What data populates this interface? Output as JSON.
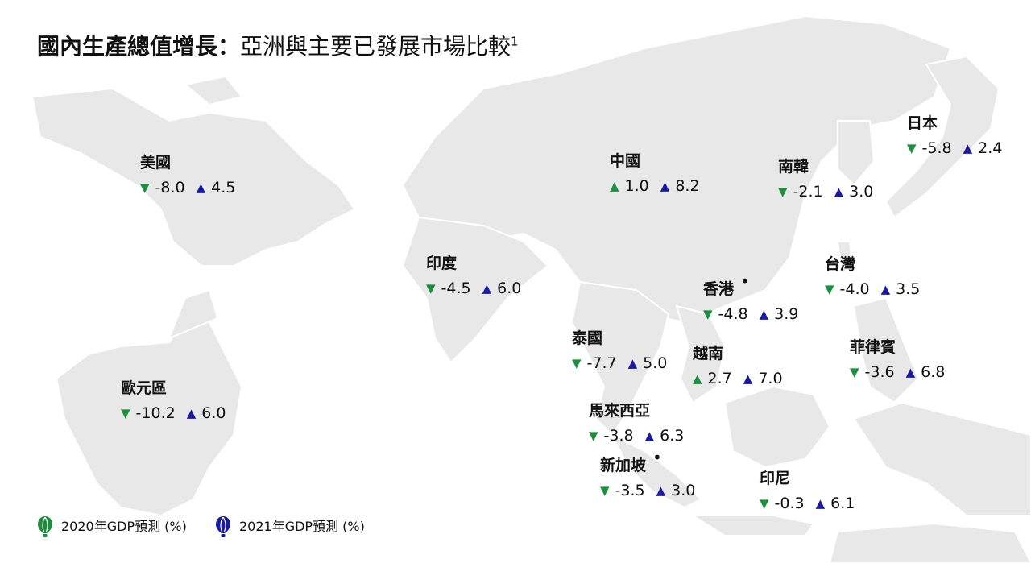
{
  "title": {
    "bold": "國內生產總值增長：",
    "normal": "亞洲與主要已發展市場比較",
    "sup": "1"
  },
  "legend": {
    "items": [
      {
        "label": "2020年GDP預測 (%)",
        "color": "#1a8f3e",
        "icon": "balloon-icon"
      },
      {
        "label": "2021年GDP預測 (%)",
        "color": "#1a1aa0",
        "icon": "balloon-icon"
      }
    ]
  },
  "colors": {
    "map_land": "#e8e8e8",
    "marker_2020": "#1a8f3e",
    "marker_2021": "#1a1aa0",
    "text": "#111111"
  },
  "chart_data": {
    "type": "table",
    "columns": [
      "2020年GDP預測 (%)",
      "2021年GDP預測 (%)"
    ],
    "regions": [
      {
        "name": "美國",
        "v2020": "-8.0",
        "v2021": "4.5",
        "dir2020": "down",
        "dir2021": "up"
      },
      {
        "name": "中國",
        "v2020": "1.0",
        "v2021": "8.2",
        "dir2020": "up",
        "dir2021": "up"
      },
      {
        "name": "南韓",
        "v2020": "-2.1",
        "v2021": "3.0",
        "dir2020": "down",
        "dir2021": "up"
      },
      {
        "name": "日本",
        "v2020": "-5.8",
        "v2021": "2.4",
        "dir2020": "down",
        "dir2021": "up"
      },
      {
        "name": "印度",
        "v2020": "-4.5",
        "v2021": "6.0",
        "dir2020": "down",
        "dir2021": "up"
      },
      {
        "name": "台灣",
        "v2020": "-4.0",
        "v2021": "3.5",
        "dir2020": "down",
        "dir2021": "up"
      },
      {
        "name": "香港",
        "v2020": "-4.8",
        "v2021": "3.9",
        "dir2020": "down",
        "dir2021": "up",
        "dot": "•"
      },
      {
        "name": "泰國",
        "v2020": "-7.7",
        "v2021": "5.0",
        "dir2020": "down",
        "dir2021": "up"
      },
      {
        "name": "越南",
        "v2020": "2.7",
        "v2021": "7.0",
        "dir2020": "up",
        "dir2021": "up"
      },
      {
        "name": "菲律賓",
        "v2020": "-3.6",
        "v2021": "6.8",
        "dir2020": "down",
        "dir2021": "up"
      },
      {
        "name": "歐元區",
        "v2020": "-10.2",
        "v2021": "6.0",
        "dir2020": "down",
        "dir2021": "up"
      },
      {
        "name": "馬來西亞",
        "v2020": "-3.8",
        "v2021": "6.3",
        "dir2020": "down",
        "dir2021": "up"
      },
      {
        "name": "新加坡",
        "v2020": "-3.5",
        "v2021": "3.0",
        "dir2020": "down",
        "dir2021": "up",
        "dot": "•"
      },
      {
        "name": "印尼",
        "v2020": "-0.3",
        "v2021": "6.1",
        "dir2020": "down",
        "dir2021": "up"
      }
    ]
  }
}
